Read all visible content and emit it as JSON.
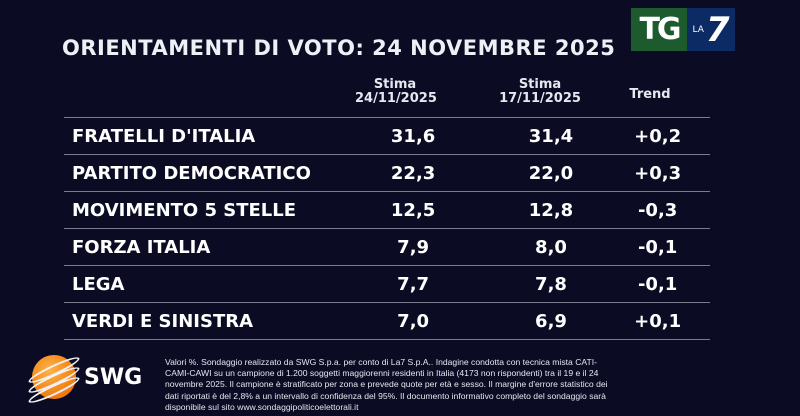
{
  "title": "ORIENTAMENTI DI VOTO: 24 NOVEMBRE 2025",
  "logo": {
    "tg": "TG",
    "la": "LA",
    "seven": "7"
  },
  "headers": {
    "col1": {
      "line1": "Stima",
      "line2": "24/11/2025"
    },
    "col2": {
      "line1": "Stima",
      "line2": "17/11/2025"
    },
    "col3": "Trend"
  },
  "rows": [
    {
      "party": "FRATELLI D'ITALIA",
      "current": "31,6",
      "previous": "31,4",
      "trend": "+0,2"
    },
    {
      "party": "PARTITO DEMOCRATICO",
      "current": "22,3",
      "previous": "22,0",
      "trend": "+0,3"
    },
    {
      "party": "MOVIMENTO 5 STELLE",
      "current": "12,5",
      "previous": "12,8",
      "trend": "-0,3"
    },
    {
      "party": "FORZA ITALIA",
      "current": "7,9",
      "previous": "8,0",
      "trend": "-0,1"
    },
    {
      "party": "LEGA",
      "current": "7,7",
      "previous": "7,8",
      "trend": "-0,1"
    },
    {
      "party": "VERDI E SINISTRA",
      "current": "7,0",
      "previous": "6,9",
      "trend": "+0,1"
    }
  ],
  "swg_logo": "SWG",
  "footnote": "Valori %. Sondaggio realizzato da SWG S.p.a. per conto di La7 S.p.A.. Indagine condotta con tecnica mista CATI-CAMI-CAWI su un campione di 1.200 soggetti maggiorenni residenti in Italia (4173 non rispondenti) tra il 19 e il 24 novembre 2025. Il campione è stratificato per zona e prevede quote per età e sesso. Il margine d'errore statistico dei dati riportati è del 2,8% a un intervallo di confidenza del 95%. Il documento informativo completo del sondaggio sarà disponibile sul sito www.sondaggipoliticoelettorali.it"
}
